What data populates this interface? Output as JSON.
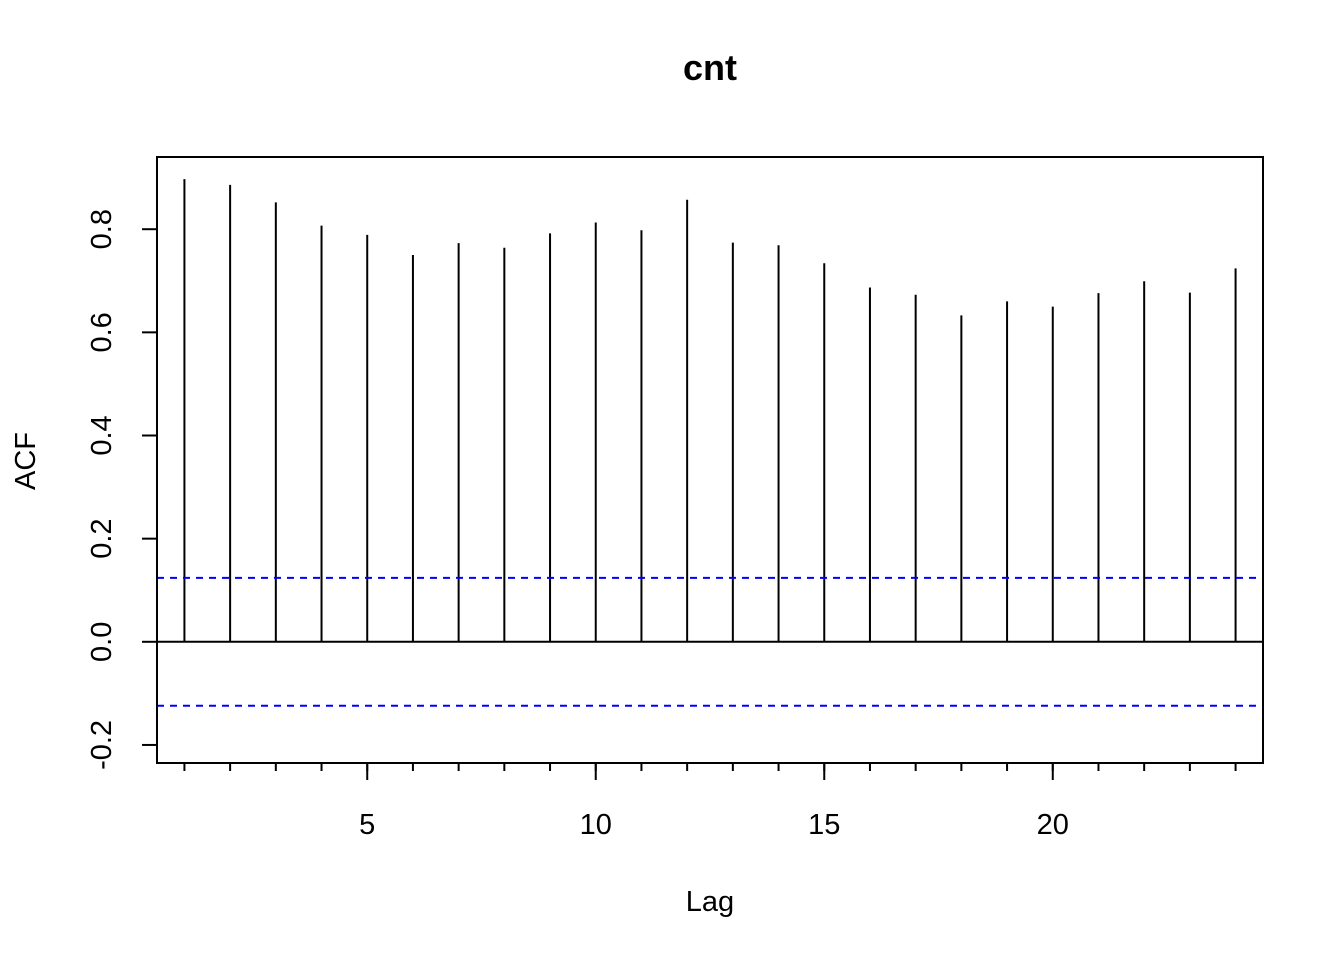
{
  "chart_data": {
    "type": "bar",
    "title": "cnt",
    "xlabel": "Lag",
    "ylabel": "ACF",
    "xlim": [
      0.4,
      24.6
    ],
    "ylim": [
      -0.235,
      0.94
    ],
    "x_ticks": [
      5,
      10,
      15,
      20
    ],
    "x_tick_labels": [
      "5",
      "10",
      "15",
      "20"
    ],
    "x_minor_ticks": [
      1,
      2,
      3,
      4,
      5,
      6,
      7,
      8,
      9,
      10,
      11,
      12,
      13,
      14,
      15,
      16,
      17,
      18,
      19,
      20,
      21,
      22,
      23,
      24
    ],
    "y_ticks": [
      -0.2,
      0.0,
      0.2,
      0.4,
      0.6,
      0.8
    ],
    "y_tick_labels": [
      "-0.2",
      "0.0",
      "0.2",
      "0.4",
      "0.6",
      "0.8"
    ],
    "lags": [
      1,
      2,
      3,
      4,
      5,
      6,
      7,
      8,
      9,
      10,
      11,
      12,
      13,
      14,
      15,
      16,
      17,
      18,
      19,
      20,
      21,
      22,
      23,
      24
    ],
    "values": [
      0.897,
      0.886,
      0.852,
      0.807,
      0.789,
      0.75,
      0.773,
      0.764,
      0.792,
      0.813,
      0.798,
      0.857,
      0.774,
      0.769,
      0.734,
      0.687,
      0.673,
      0.633,
      0.66,
      0.65,
      0.676,
      0.699,
      0.677,
      0.724
    ],
    "confidence_bound": 0.124,
    "colors": {
      "bars": "#000000",
      "confidence": "#0000ff",
      "frame": "#000000"
    },
    "grid": false
  }
}
